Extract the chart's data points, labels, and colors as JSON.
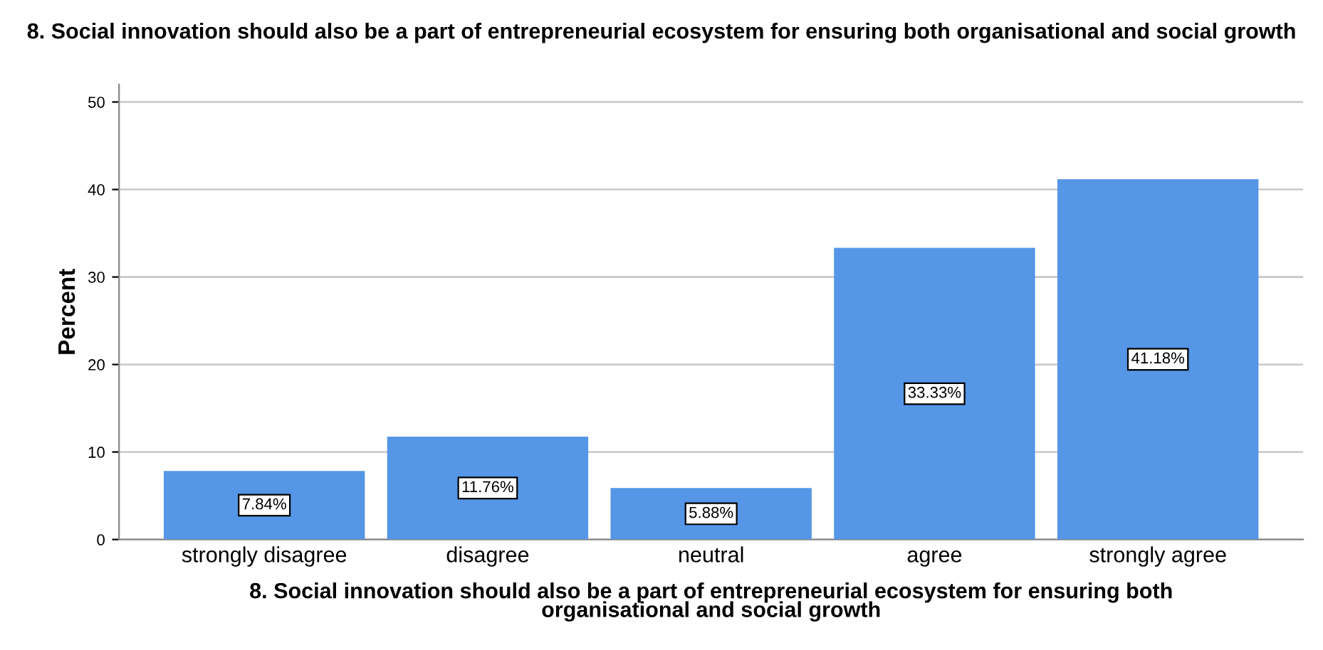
{
  "chart_data": {
    "type": "bar",
    "title": "8. Social innovation should also be a part of entrepreneurial ecosystem for ensuring both organisational and social growth",
    "xlabel": "8. Social innovation should also be a part of entrepreneurial ecosystem for ensuring both\norganisational and social growth",
    "ylabel": "Percent",
    "categories": [
      "strongly disagree",
      "disagree",
      "neutral",
      "agree",
      "strongly agree"
    ],
    "values": [
      7.84,
      11.76,
      5.88,
      33.33,
      41.18
    ],
    "value_labels": [
      "7.84%",
      "11.76%",
      "5.88%",
      "33.33%",
      "41.18%"
    ],
    "color": "#5596e6",
    "ylim": [
      0,
      52
    ],
    "yticks": [
      0,
      10,
      20,
      30,
      40,
      50
    ],
    "grid": "y",
    "legend": false
  }
}
